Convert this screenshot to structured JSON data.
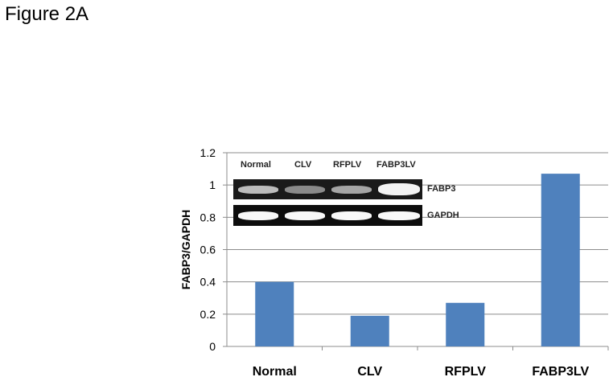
{
  "figure_label": "Figure 2A",
  "chart_data": {
    "type": "bar",
    "categories": [
      "Normal",
      "CLV",
      "RFPLV",
      "FABP3LV"
    ],
    "values": [
      0.4,
      0.19,
      0.27,
      1.07
    ],
    "ylabel": "FABP3/GAPDH",
    "xlabel": "",
    "ylim": [
      0,
      1.2
    ],
    "yticks": [
      "0",
      "0.2",
      "0.4",
      "0.6",
      "0.8",
      "1",
      "1.2"
    ],
    "grid": true,
    "bar_color": "#4f81bd"
  },
  "inset": {
    "lanes": [
      "Normal",
      "CLV",
      "RFPLV",
      "FABP3LV"
    ],
    "rows": [
      "FABP3",
      "GAPDH"
    ]
  }
}
